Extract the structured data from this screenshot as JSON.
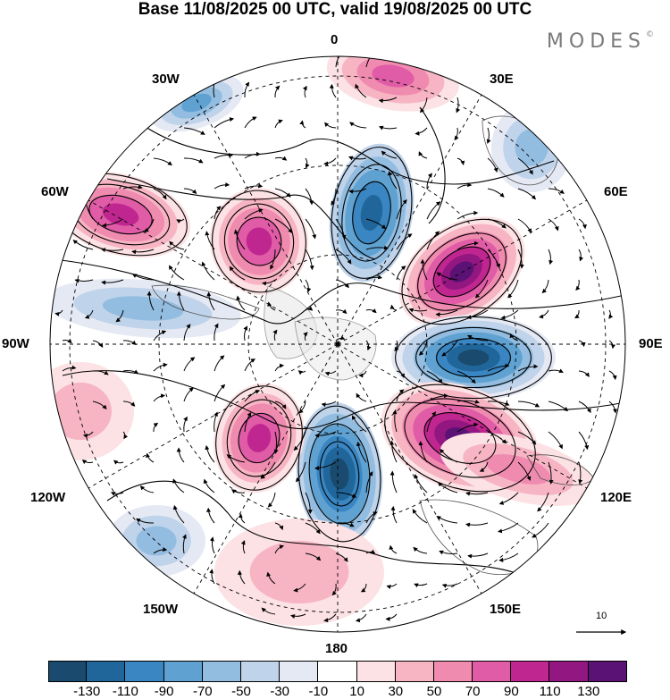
{
  "title": "Base 11/08/2025 00 UTC, valid 19/08/2025 00 UTC",
  "brand": "MODES",
  "brand_mark": "©",
  "longitude_labels": {
    "top": "0",
    "bottom": "180",
    "left": "90W",
    "right": "90E",
    "upper_left_1": "30W",
    "upper_left_2": "60W",
    "upper_right_1": "30E",
    "upper_right_2": "60E",
    "lower_left_1": "120W",
    "lower_left_2": "150W",
    "lower_right_1": "120E",
    "lower_right_2": "150E"
  },
  "reference_vector": {
    "label": "10"
  },
  "colorbar": {
    "colors": [
      "#1a4b6e",
      "#20669a",
      "#3a86c2",
      "#5fa2d2",
      "#93bde0",
      "#bfd3ea",
      "#e5e9f4",
      "#ffffff",
      "#fce2e4",
      "#f7b5c4",
      "#f08bb0",
      "#e05ca6",
      "#c0268f",
      "#921781",
      "#5b1275"
    ],
    "ticks": [
      "-130",
      "-110",
      "-90",
      "-70",
      "-50",
      "-30",
      "-10",
      "10",
      "30",
      "50",
      "70",
      "90",
      "110",
      "130"
    ]
  }
}
